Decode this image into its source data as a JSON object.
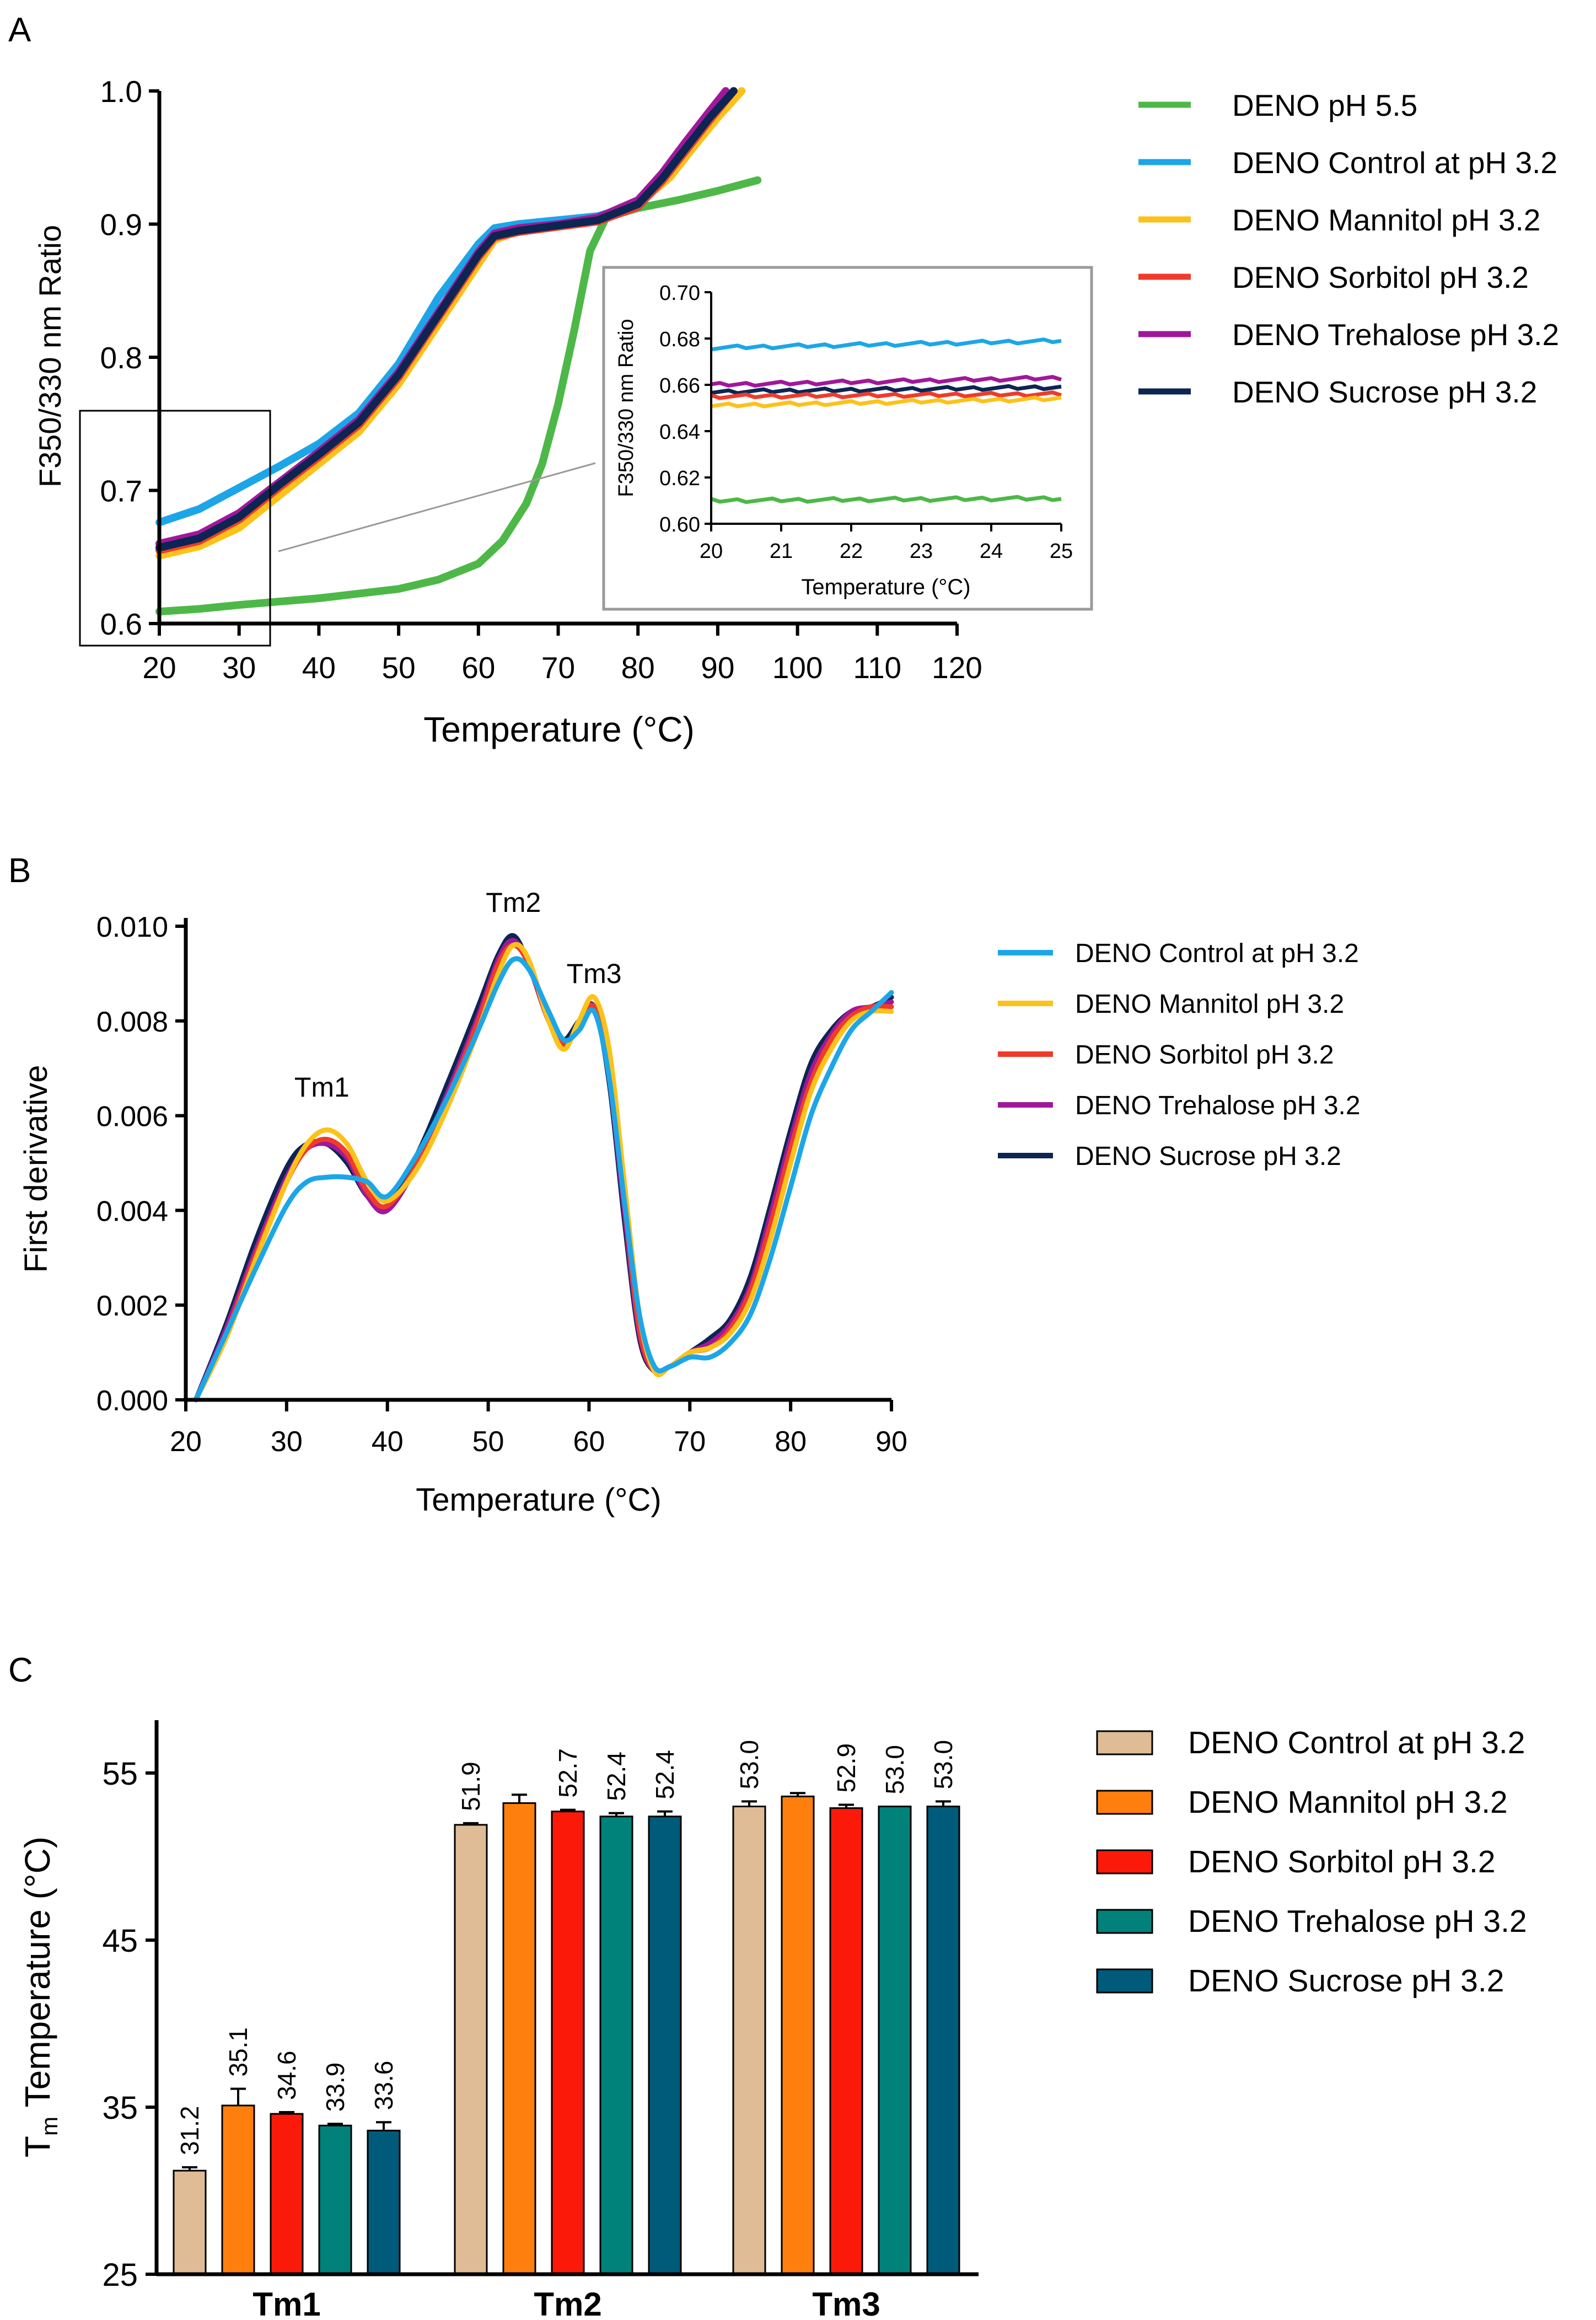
{
  "figure": {
    "colors": {
      "ph55": "#4db848",
      "control": "#1ca6e8",
      "mannitol": "#fcc21a",
      "sorbitol": "#ef3b2c",
      "trehalose": "#a0189a",
      "sucrose": "#0c2552",
      "bar_control": "#dfbc96",
      "bar_mannitol": "#ff7f0e",
      "bar_sorbitol": "#fb1a0a",
      "bar_trehalose": "#00827a",
      "bar_sucrose": "#005a7a"
    },
    "chart_data": [
      {
        "panel": "A",
        "type": "line",
        "xlabel": "Temperature (°C)",
        "ylabel": "F350/330 nm Ratio",
        "xlim": [
          20,
          120
        ],
        "ylim": [
          0.6,
          1.0
        ],
        "x_ticks": [
          "20",
          "30",
          "40",
          "50",
          "60",
          "70",
          "80",
          "90",
          "100",
          "110",
          "120"
        ],
        "y_ticks": [
          "0.6",
          "0.7",
          "0.8",
          "0.9",
          "1.0"
        ],
        "legend": "right",
        "series": [
          {
            "name": "DENO pH 5.5",
            "color_key": "ph55",
            "x": [
              20,
              25,
              30,
              40,
              50,
              55,
              60,
              63,
              66,
              68,
              70,
              72,
              74,
              76,
              80,
              85,
              90,
              95
            ],
            "y": [
              0.609,
              0.611,
              0.614,
              0.619,
              0.626,
              0.633,
              0.645,
              0.662,
              0.69,
              0.72,
              0.765,
              0.82,
              0.88,
              0.905,
              0.912,
              0.918,
              0.925,
              0.933
            ]
          },
          {
            "name": "DENO Control at pH 3.2",
            "color_key": "control",
            "x": [
              20,
              25,
              30,
              35,
              40,
              45,
              50,
              55,
              60,
              62,
              65,
              70,
              75,
              80,
              83,
              86,
              89,
              92
            ],
            "y": [
              0.676,
              0.686,
              0.702,
              0.718,
              0.735,
              0.758,
              0.795,
              0.845,
              0.885,
              0.897,
              0.9,
              0.903,
              0.906,
              0.915,
              0.93,
              0.955,
              0.98,
              1.0
            ]
          },
          {
            "name": "DENO Mannitol pH 3.2",
            "color_key": "mannitol",
            "x": [
              20,
              25,
              30,
              35,
              40,
              45,
              50,
              55,
              60,
              62,
              65,
              70,
              75,
              80,
              84,
              87,
              90,
              93
            ],
            "y": [
              0.651,
              0.658,
              0.672,
              0.696,
              0.72,
              0.744,
              0.78,
              0.825,
              0.87,
              0.888,
              0.895,
              0.9,
              0.905,
              0.915,
              0.935,
              0.958,
              0.98,
              1.0
            ]
          },
          {
            "name": "DENO Sorbitol pH 3.2",
            "color_key": "sorbitol",
            "x": [
              20,
              25,
              30,
              35,
              40,
              45,
              50,
              55,
              60,
              62,
              65,
              70,
              75,
              80,
              83,
              86,
              89,
              92
            ],
            "y": [
              0.655,
              0.662,
              0.678,
              0.702,
              0.725,
              0.749,
              0.785,
              0.83,
              0.875,
              0.89,
              0.894,
              0.898,
              0.902,
              0.913,
              0.932,
              0.955,
              0.978,
              1.0
            ]
          },
          {
            "name": "DENO Trehalose pH 3.2",
            "color_key": "trehalose",
            "x": [
              20,
              25,
              30,
              35,
              40,
              45,
              50,
              55,
              60,
              62,
              65,
              70,
              75,
              80,
              83,
              86,
              89,
              91
            ],
            "y": [
              0.66,
              0.667,
              0.683,
              0.706,
              0.729,
              0.753,
              0.789,
              0.834,
              0.879,
              0.893,
              0.897,
              0.9,
              0.905,
              0.918,
              0.938,
              0.962,
              0.985,
              1.0
            ]
          },
          {
            "name": "DENO Sucrose pH 3.2",
            "color_key": "sucrose",
            "x": [
              20,
              25,
              30,
              35,
              40,
              45,
              50,
              55,
              60,
              62,
              65,
              70,
              75,
              80,
              83,
              86,
              89,
              92
            ],
            "y": [
              0.657,
              0.664,
              0.68,
              0.704,
              0.727,
              0.751,
              0.787,
              0.832,
              0.877,
              0.891,
              0.895,
              0.899,
              0.903,
              0.915,
              0.934,
              0.957,
              0.98,
              1.0
            ]
          }
        ],
        "zoom_box": {
          "x": [
            14,
            34
          ],
          "y": [
            0.58,
            0.76
          ]
        },
        "inset": {
          "type": "line",
          "xlabel": "Temperature (°C)",
          "ylabel": "F350/330 nm Ratio",
          "xlim": [
            20,
            25
          ],
          "ylim": [
            0.6,
            0.7
          ],
          "x_ticks": [
            "20",
            "21",
            "22",
            "23",
            "24",
            "25"
          ],
          "y_ticks": [
            "0.60",
            "0.62",
            "0.64",
            "0.66",
            "0.68",
            "0.70"
          ],
          "series": [
            {
              "color_key": "control",
              "x": [
                20,
                25
              ],
              "y": [
                0.676,
                0.679
              ]
            },
            {
              "color_key": "trehalose",
              "x": [
                20,
                25
              ],
              "y": [
                0.66,
                0.663
              ]
            },
            {
              "color_key": "sucrose",
              "x": [
                20,
                25
              ],
              "y": [
                0.657,
                0.659
              ]
            },
            {
              "color_key": "sorbitol",
              "x": [
                20,
                25
              ],
              "y": [
                0.655,
                0.656
              ]
            },
            {
              "color_key": "mannitol",
              "x": [
                20,
                25
              ],
              "y": [
                0.651,
                0.654
              ]
            },
            {
              "color_key": "ph55",
              "x": [
                20,
                25
              ],
              "y": [
                0.61,
                0.611
              ]
            }
          ]
        }
      },
      {
        "panel": "B",
        "type": "line",
        "xlabel": "Temperature (°C)",
        "ylabel": "First derivative",
        "xlim": [
          20,
          90
        ],
        "ylim": [
          0.0,
          0.01
        ],
        "x_ticks": [
          "20",
          "30",
          "40",
          "50",
          "60",
          "70",
          "80",
          "90"
        ],
        "y_ticks": [
          "0.000",
          "0.002",
          "0.004",
          "0.006",
          "0.008",
          "0.010"
        ],
        "legend": "right",
        "annotations": [
          {
            "text": "Tm1",
            "x": 33.5,
            "y": 0.0064
          },
          {
            "text": "Tm2",
            "x": 52.5,
            "y": 0.0103
          },
          {
            "text": "Tm3",
            "x": 60.5,
            "y": 0.0088
          }
        ],
        "series": [
          {
            "name": "DENO Control at pH 3.2",
            "color_key": "control",
            "x": [
              21,
              24,
              27,
              30,
              32,
              34,
              36,
              38,
              40,
              43,
              46,
              49,
              51,
              52.5,
              54,
              56,
              57.5,
              59,
              60.5,
              62,
              63.5,
              65,
              66.5,
              68,
              70,
              72,
              74,
              76,
              78,
              80,
              82,
              84,
              86,
              88,
              90
            ],
            "y": [
              0.0,
              0.0014,
              0.0028,
              0.0041,
              0.0046,
              0.0047,
              0.0047,
              0.0046,
              0.0043,
              0.0052,
              0.0064,
              0.0078,
              0.0088,
              0.0093,
              0.0091,
              0.0082,
              0.0076,
              0.0078,
              0.0082,
              0.0068,
              0.0042,
              0.0018,
              0.0007,
              0.0007,
              0.0009,
              0.0009,
              0.0012,
              0.0018,
              0.003,
              0.0045,
              0.006,
              0.007,
              0.0078,
              0.0082,
              0.0086
            ]
          },
          {
            "name": "DENO Mannitol pH 3.2",
            "color_key": "mannitol",
            "x": [
              21,
              24,
              27,
              30,
              32,
              34,
              36,
              38,
              40,
              43,
              46,
              49,
              51,
              52.5,
              54,
              56,
              57.5,
              59,
              60.5,
              62,
              63.5,
              65,
              66.5,
              68,
              70,
              72,
              74,
              76,
              78,
              80,
              82,
              84,
              86,
              88,
              90
            ],
            "y": [
              0.0,
              0.0013,
              0.003,
              0.0046,
              0.0054,
              0.0057,
              0.0054,
              0.0046,
              0.0042,
              0.0049,
              0.0062,
              0.0078,
              0.009,
              0.0096,
              0.0093,
              0.008,
              0.0074,
              0.008,
              0.0085,
              0.0074,
              0.0046,
              0.0018,
              0.0006,
              0.0007,
              0.001,
              0.0011,
              0.0014,
              0.0021,
              0.0034,
              0.005,
              0.0065,
              0.0074,
              0.008,
              0.0082,
              0.0082
            ]
          },
          {
            "name": "DENO Sorbitol pH 3.2",
            "color_key": "sorbitol",
            "x": [
              21,
              24,
              27,
              30,
              32,
              34,
              36,
              38,
              40,
              43,
              46,
              49,
              51,
              52.5,
              54,
              56,
              57.5,
              59,
              60.5,
              62,
              63.5,
              65,
              66.5,
              68,
              70,
              72,
              74,
              76,
              78,
              80,
              82,
              84,
              86,
              88,
              90
            ],
            "y": [
              0.0,
              0.0014,
              0.0031,
              0.0046,
              0.0053,
              0.0055,
              0.0052,
              0.0044,
              0.0041,
              0.005,
              0.0064,
              0.008,
              0.0092,
              0.0096,
              0.0092,
              0.008,
              0.0075,
              0.0079,
              0.0083,
              0.007,
              0.0042,
              0.0015,
              0.0006,
              0.0007,
              0.001,
              0.0011,
              0.0015,
              0.0023,
              0.0037,
              0.0053,
              0.0067,
              0.0076,
              0.0081,
              0.0083,
              0.0083
            ]
          },
          {
            "name": "DENO Trehalose pH 3.2",
            "color_key": "trehalose",
            "x": [
              21,
              24,
              27,
              30,
              32,
              34,
              36,
              38,
              40,
              43,
              46,
              49,
              51,
              52.5,
              54,
              56,
              57.5,
              59,
              60.5,
              62,
              63.5,
              65,
              66.5,
              68,
              70,
              72,
              74,
              76,
              78,
              80,
              82,
              84,
              86,
              88,
              90
            ],
            "y": [
              0.0,
              0.0015,
              0.0032,
              0.0047,
              0.0053,
              0.0054,
              0.0051,
              0.0043,
              0.004,
              0.005,
              0.0065,
              0.0081,
              0.0093,
              0.0097,
              0.0092,
              0.008,
              0.0075,
              0.0079,
              0.0083,
              0.0068,
              0.004,
              0.0014,
              0.0006,
              0.0007,
              0.001,
              0.0012,
              0.0016,
              0.0024,
              0.0039,
              0.0055,
              0.0069,
              0.0077,
              0.0082,
              0.0083,
              0.0084
            ]
          },
          {
            "name": "DENO Sucrose pH 3.2",
            "color_key": "sucrose",
            "x": [
              21,
              24,
              27,
              30,
              32,
              34,
              36,
              38,
              40,
              43,
              46,
              49,
              51,
              52.5,
              54,
              56,
              57.5,
              59,
              60.5,
              62,
              63.5,
              65,
              66.5,
              68,
              70,
              72,
              74,
              76,
              78,
              80,
              82,
              84,
              86,
              88,
              90
            ],
            "y": [
              0.0,
              0.0016,
              0.0034,
              0.0049,
              0.0054,
              0.0054,
              0.005,
              0.0043,
              0.0041,
              0.0052,
              0.0067,
              0.0083,
              0.0094,
              0.0098,
              0.0092,
              0.008,
              0.0076,
              0.008,
              0.0083,
              0.0067,
              0.0038,
              0.0013,
              0.0006,
              0.0007,
              0.001,
              0.0013,
              0.0017,
              0.0026,
              0.0041,
              0.0057,
              0.0071,
              0.0078,
              0.0082,
              0.0083,
              0.0085
            ]
          }
        ]
      },
      {
        "panel": "C",
        "type": "bar",
        "ylabel_main": "T",
        "ylabel_sub": "m",
        "ylabel_rest": " Temperature (°C)",
        "ylim": [
          25,
          58
        ],
        "y_ticks": [
          "25",
          "35",
          "45",
          "55"
        ],
        "categories": [
          "Tm1",
          "Tm2",
          "Tm3"
        ],
        "legend": "right",
        "series": [
          {
            "name": "DENO Control at pH 3.2",
            "color_key": "bar_control",
            "values": [
              31.2,
              51.9,
              53.0
            ],
            "errors": [
              0.2,
              0.1,
              0.3
            ],
            "labels": [
              "31.2",
              "51.9",
              "53.0"
            ]
          },
          {
            "name": "DENO Mannitol pH 3.2",
            "color_key": "bar_mannitol",
            "values": [
              35.1,
              53.2,
              53.6
            ],
            "errors": [
              1.0,
              0.5,
              0.2
            ],
            "labels": [
              "35.1",
              "",
              ""
            ]
          },
          {
            "name": "DENO Sorbitol pH 3.2",
            "color_key": "bar_sorbitol",
            "values": [
              34.6,
              52.7,
              52.9
            ],
            "errors": [
              0.1,
              0.1,
              0.2
            ],
            "labels": [
              "34.6",
              "52.7",
              "52.9"
            ]
          },
          {
            "name": "DENO Trehalose pH 3.2",
            "color_key": "bar_trehalose",
            "values": [
              33.9,
              52.4,
              53.0
            ],
            "errors": [
              0.1,
              0.2,
              0.0
            ],
            "labels": [
              "33.9",
              "52.4",
              "53.0"
            ]
          },
          {
            "name": "DENO Sucrose pH 3.2",
            "color_key": "bar_sucrose",
            "values": [
              33.6,
              52.4,
              53.0
            ],
            "errors": [
              0.5,
              0.3,
              0.3
            ],
            "labels": [
              "33.6",
              "52.4",
              "53.0"
            ]
          }
        ]
      }
    ]
  }
}
